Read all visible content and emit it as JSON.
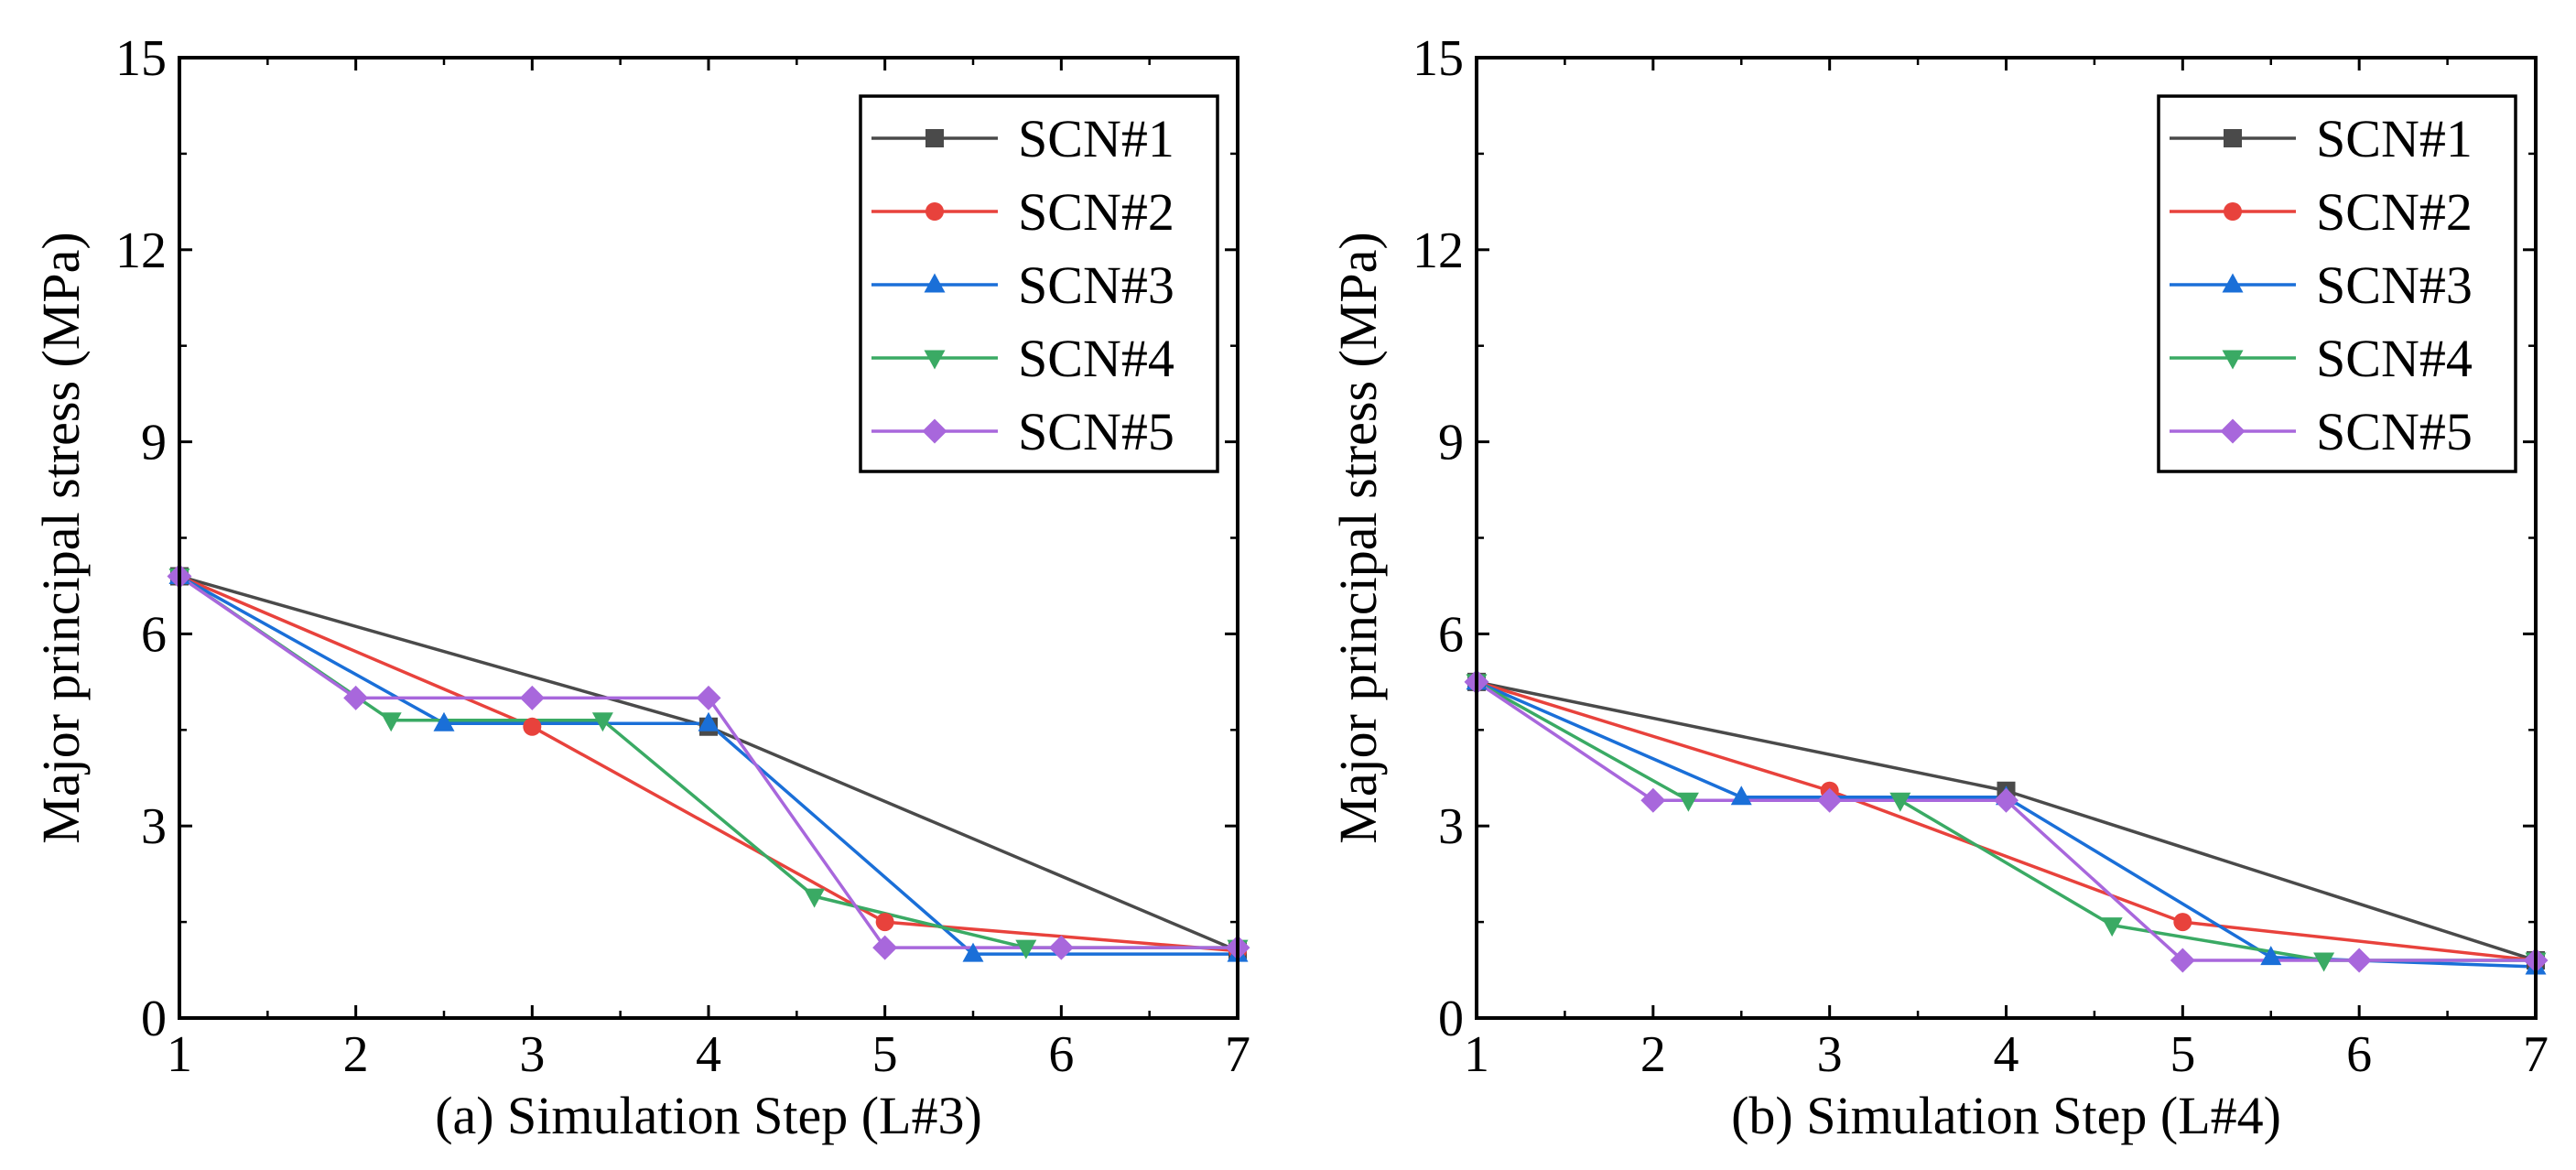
{
  "chart_data": [
    {
      "type": "line",
      "title": "",
      "xlabel": "(a) Simulation Step (L#3)",
      "ylabel": "Major principal stress (MPa)",
      "xlim": [
        1,
        7
      ],
      "ylim": [
        0,
        15
      ],
      "xticks": [
        1,
        2,
        3,
        4,
        5,
        6,
        7
      ],
      "yticks": [
        0,
        3,
        6,
        9,
        12,
        15
      ],
      "grid": false,
      "legend_position": "top-right",
      "series": [
        {
          "name": "SCN#1",
          "color": "#4a4a4a",
          "marker": "square",
          "points": [
            [
              1,
              6.9
            ],
            [
              4,
              4.55
            ],
            [
              7,
              1.05
            ]
          ]
        },
        {
          "name": "SCN#2",
          "color": "#e8423c",
          "marker": "circle",
          "points": [
            [
              1,
              6.9
            ],
            [
              3,
              4.55
            ],
            [
              5,
              1.5
            ],
            [
              7,
              1.05
            ]
          ]
        },
        {
          "name": "SCN#3",
          "color": "#1a6fd8",
          "marker": "triangle-up",
          "points": [
            [
              1,
              6.9
            ],
            [
              2.5,
              4.6
            ],
            [
              4,
              4.6
            ],
            [
              5.5,
              1.0
            ],
            [
              7,
              1.0
            ]
          ]
        },
        {
          "name": "SCN#4",
          "color": "#3aaa64",
          "marker": "triangle-down",
          "points": [
            [
              1,
              6.9
            ],
            [
              2.2,
              4.65
            ],
            [
              3.4,
              4.65
            ],
            [
              4.6,
              1.9
            ],
            [
              5.8,
              1.1
            ],
            [
              7,
              1.1
            ]
          ]
        },
        {
          "name": "SCN#5",
          "color": "#a867dc",
          "marker": "diamond",
          "points": [
            [
              1,
              6.9
            ],
            [
              2,
              5.0
            ],
            [
              3,
              5.0
            ],
            [
              4,
              5.0
            ],
            [
              5,
              1.1
            ],
            [
              6,
              1.1
            ],
            [
              7,
              1.1
            ]
          ]
        }
      ]
    },
    {
      "type": "line",
      "title": "",
      "xlabel": "(b) Simulation Step (L#4)",
      "ylabel": "Major principal stress (MPa)",
      "xlim": [
        1,
        7
      ],
      "ylim": [
        0,
        15
      ],
      "xticks": [
        1,
        2,
        3,
        4,
        5,
        6,
        7
      ],
      "yticks": [
        0,
        3,
        6,
        9,
        12,
        15
      ],
      "grid": false,
      "legend_position": "top-right",
      "series": [
        {
          "name": "SCN#1",
          "color": "#4a4a4a",
          "marker": "square",
          "points": [
            [
              1,
              5.25
            ],
            [
              4,
              3.55
            ],
            [
              7,
              0.9
            ]
          ]
        },
        {
          "name": "SCN#2",
          "color": "#e8423c",
          "marker": "circle",
          "points": [
            [
              1,
              5.25
            ],
            [
              3,
              3.55
            ],
            [
              5,
              1.5
            ],
            [
              7,
              0.9
            ]
          ]
        },
        {
          "name": "SCN#3",
          "color": "#1a6fd8",
          "marker": "triangle-up",
          "points": [
            [
              1,
              5.25
            ],
            [
              2.5,
              3.45
            ],
            [
              4,
              3.45
            ],
            [
              5.5,
              0.95
            ],
            [
              7,
              0.8
            ]
          ]
        },
        {
          "name": "SCN#4",
          "color": "#3aaa64",
          "marker": "triangle-down",
          "points": [
            [
              1,
              5.25
            ],
            [
              2.2,
              3.4
            ],
            [
              3.4,
              3.4
            ],
            [
              4.6,
              1.45
            ],
            [
              5.8,
              0.9
            ],
            [
              7,
              0.9
            ]
          ]
        },
        {
          "name": "SCN#5",
          "color": "#a867dc",
          "marker": "diamond",
          "points": [
            [
              1,
              5.25
            ],
            [
              2,
              3.4
            ],
            [
              3,
              3.4
            ],
            [
              4,
              3.4
            ],
            [
              5,
              0.9
            ],
            [
              6,
              0.9
            ],
            [
              7,
              0.9
            ]
          ]
        }
      ]
    }
  ]
}
